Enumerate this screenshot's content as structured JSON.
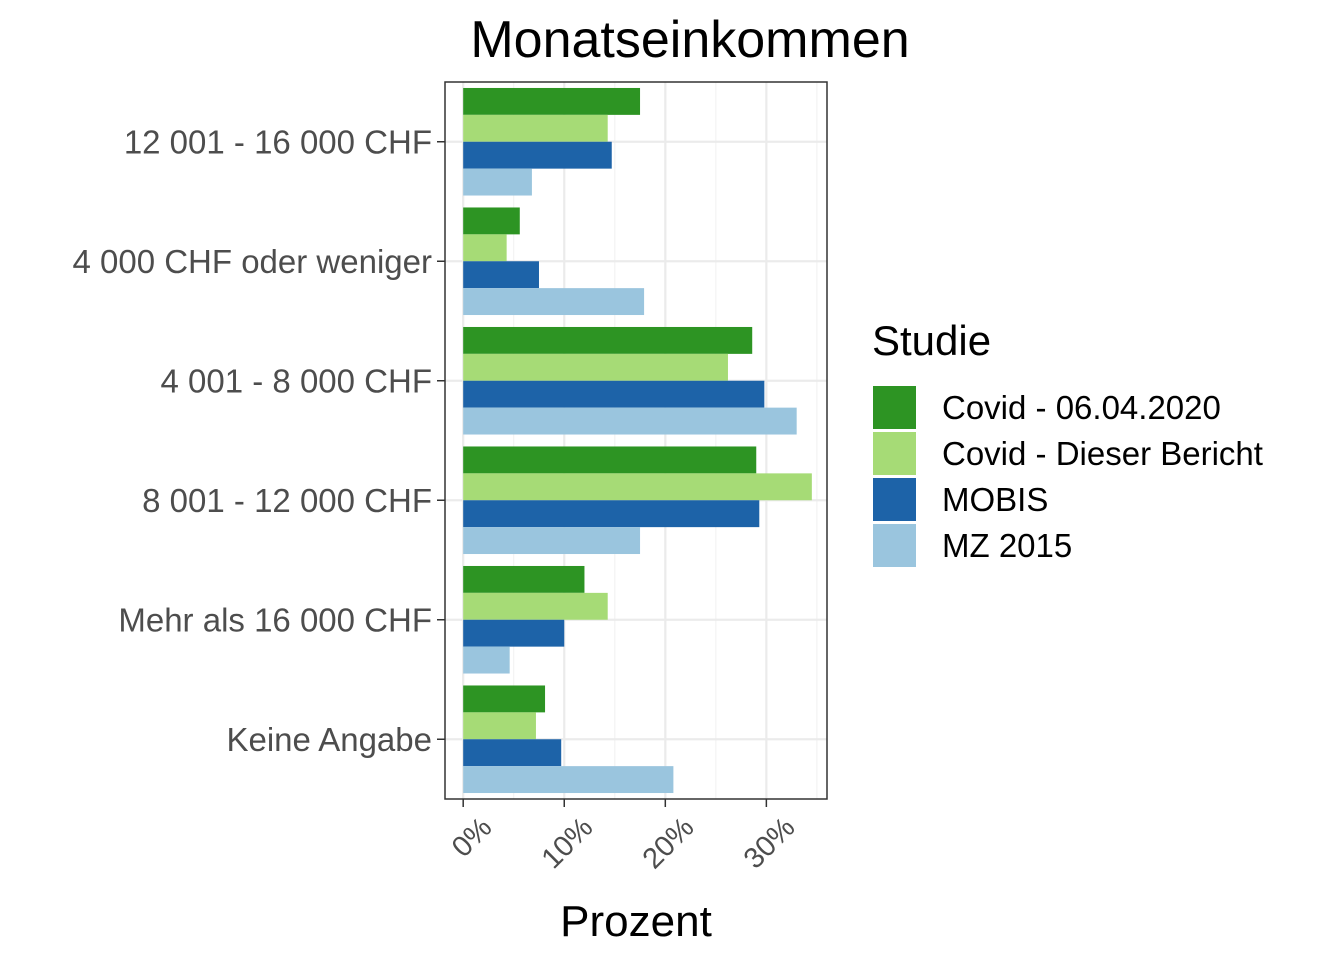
{
  "chart_data": {
    "type": "bar",
    "orientation": "horizontal",
    "title": "Monatseinkommen",
    "xlabel": "Prozent",
    "ylabel": "",
    "xlim": [
      -0.018,
      0.36
    ],
    "x_ticks": [
      0,
      0.1,
      0.2,
      0.3
    ],
    "x_tick_labels": [
      "0%",
      "10%",
      "20%",
      "30%"
    ],
    "grid": true,
    "legend_position": "right",
    "legend_title": "Studie",
    "categories": [
      "12 001 - 16 000 CHF",
      "4 000 CHF oder weniger",
      "4 001 - 8 000 CHF",
      "8 001 - 12 000 CHF",
      "Mehr als 16 000 CHF",
      "Keine Angabe"
    ],
    "series": [
      {
        "name": "Covid - 06.04.2020",
        "color": "#2d9423",
        "values": [
          0.175,
          0.056,
          0.286,
          0.29,
          0.12,
          0.081
        ]
      },
      {
        "name": "Covid - Dieser Bericht",
        "color": "#a6db76",
        "values": [
          0.143,
          0.043,
          0.262,
          0.345,
          0.143,
          0.072
        ]
      },
      {
        "name": "MOBIS",
        "color": "#1d63a8",
        "values": [
          0.147,
          0.075,
          0.298,
          0.293,
          0.1,
          0.097
        ]
      },
      {
        "name": "MZ 2015",
        "color": "#9ac5de",
        "values": [
          0.068,
          0.179,
          0.33,
          0.175,
          0.046,
          0.208
        ]
      }
    ]
  }
}
